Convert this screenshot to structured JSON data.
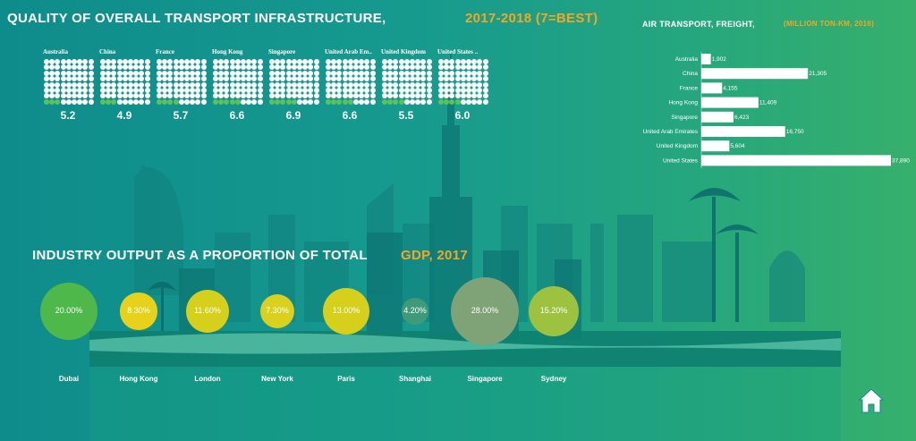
{
  "titles": {
    "transport_main": "QUALITY OF OVERALL TRANSPORT INFRASTRUCTURE,",
    "transport_sub": "2017-2018 (7=BEST)",
    "air_main": "AIR TRANSPORT, FREIGHT,",
    "air_sub": "(MILLION TON-KM, 2016)",
    "industry_main": "INDUSTRY OUTPUT AS A PROPORTION OF TOTAL",
    "industry_sub": "GDP, 2017"
  },
  "colors": {
    "dot_empty": "#ffffff",
    "dot_filled": "#5cc35c",
    "accent_orange": "#f5a623",
    "bar_fill": "#ffffff"
  },
  "icons": {
    "home": "home-icon"
  },
  "chart_data": [
    {
      "type": "waffle",
      "title": "QUALITY OF OVERALL TRANSPORT INFRASTRUCTURE, 2017-2018 (7=BEST)",
      "categories": [
        "Australia",
        "China",
        "France",
        "Hong Kong",
        "Singapore",
        "United Arab Em..",
        "United Kingdom",
        "United States .."
      ],
      "values": [
        5.2,
        4.9,
        5.7,
        6.6,
        6.9,
        6.6,
        5.5,
        6.0
      ],
      "value_labels": [
        "5.2",
        "4.9",
        "5.7",
        "6.6",
        "6.9",
        "6.6",
        "5.5",
        "6.0"
      ],
      "max": 7
    },
    {
      "type": "bar",
      "orientation": "horizontal",
      "title": "AIR TRANSPORT, FREIGHT, (MILLION TON-KM, 2016)",
      "categories": [
        "Australia",
        "China",
        "France",
        "Hong Kong",
        "Singapore",
        "United Arab Emirates",
        "United Kingdom",
        "United States"
      ],
      "values": [
        1902,
        21305,
        4155,
        11409,
        6423,
        16750,
        5604,
        37890
      ],
      "value_labels": [
        "1,902",
        "21,305",
        "4,155",
        "11,409",
        "6,423",
        "16,750",
        "5,604",
        "37,890"
      ],
      "xlim": [
        0,
        37890
      ]
    },
    {
      "type": "bubble",
      "title": "INDUSTRY OUTPUT AS A PROPORTION OF TOTAL GDP, 2017",
      "categories": [
        "Dubai",
        "Hong Kong",
        "London",
        "New York",
        "Paris",
        "Shanghai",
        "Singapore",
        "Sydney"
      ],
      "values": [
        20.0,
        8.3,
        11.6,
        7.3,
        13.0,
        4.2,
        28.0,
        15.2
      ],
      "value_labels": [
        "20.00%",
        "8.30%",
        "11.60%",
        "7.30%",
        "13.00%",
        "4.20%",
        "28.00%",
        "15.20%"
      ],
      "colors": [
        "#4fb84a",
        "#e6d21a",
        "#d6cf1c",
        "#d9d11e",
        "#d6cf1c",
        "#3f9a7a",
        "#7fa277",
        "#9cc23f"
      ]
    }
  ]
}
